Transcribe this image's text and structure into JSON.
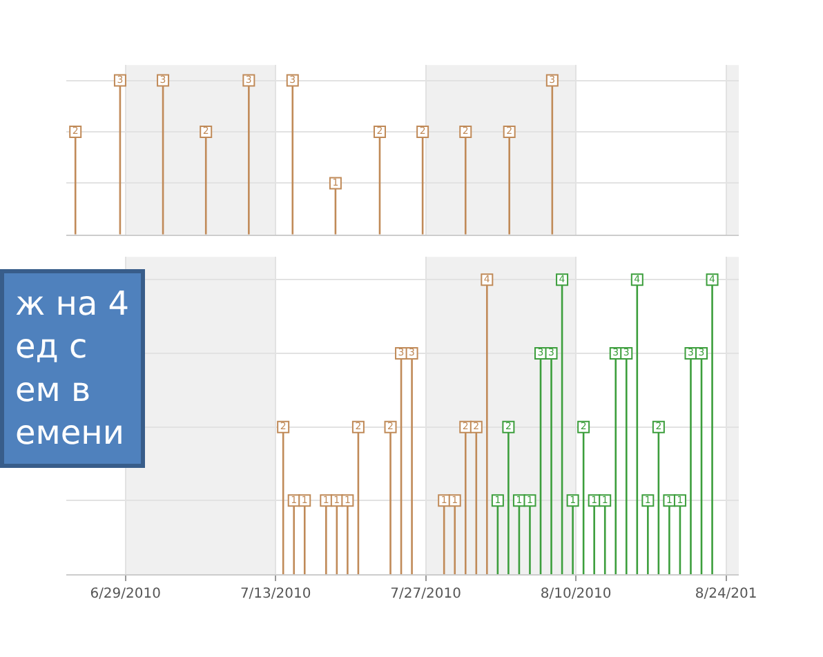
{
  "chart_data": [
    {
      "type": "lollipop",
      "data_labels": true,
      "tick_labels": false,
      "grid": true,
      "marker": "square",
      "xlim": [
        "2010-06-23T11:00",
        "2010-08-25T05:00"
      ],
      "xticks": [
        {
          "value": "2010-06-29",
          "label": null
        },
        {
          "value": "2010-07-13",
          "label": null
        },
        {
          "value": "2010-07-27",
          "label": null
        },
        {
          "value": "2010-08-10",
          "label": null
        },
        {
          "value": "2010-08-24",
          "label": null
        }
      ],
      "bands": [
        {
          "axis": "x",
          "from": "2010-06-29",
          "to": "2010-07-13",
          "color": "#f0f0f0"
        },
        {
          "axis": "x",
          "from": "2010-07-27",
          "to": "2010-08-10",
          "color": "#f0f0f0"
        },
        {
          "axis": "x",
          "from": "2010-08-24",
          "to": "2010-08-25T05:00",
          "color": "#f0f0f0"
        }
      ],
      "series": [
        {
          "color": "#c08a58",
          "x": [
            "2010-06-24T08:00",
            "2010-06-28T12:00",
            "2010-07-02T12:00",
            "2010-07-06T12:00",
            "2010-07-10T12:00",
            "2010-07-14T14:00",
            "2010-07-18T14:00",
            "2010-07-22T17:00",
            "2010-07-26T17:00",
            "2010-07-30T17:00",
            "2010-08-03T19:00",
            "2010-08-07T19:00"
          ],
          "values": [
            2,
            3,
            3,
            2,
            3,
            3,
            1,
            2,
            2,
            2,
            2,
            3
          ]
        }
      ]
    },
    {
      "type": "lollipop",
      "data_labels": true,
      "tick_labels": "x",
      "grid": true,
      "marker": "square",
      "xlim": [
        "2010-06-23T11:00",
        "2010-08-25T05:00"
      ],
      "xticks": [
        {
          "value": "2010-06-29",
          "label": "6/29/2010"
        },
        {
          "value": "2010-07-13",
          "label": "7/13/2010"
        },
        {
          "value": "2010-07-27",
          "label": "7/27/2010"
        },
        {
          "value": "2010-08-10",
          "label": "8/10/2010"
        },
        {
          "value": "2010-08-24",
          "label": "8/24/201"
        }
      ],
      "bands": [
        {
          "axis": "x",
          "from": "2010-06-29",
          "to": "2010-07-13",
          "color": "#f0f0f0"
        },
        {
          "axis": "x",
          "from": "2010-07-27",
          "to": "2010-08-10",
          "color": "#f0f0f0"
        },
        {
          "axis": "x",
          "from": "2010-08-24",
          "to": "2010-08-25T05:00",
          "color": "#f0f0f0"
        }
      ],
      "annotations": [
        "ж на 4\nед с\nем в\nемени"
      ],
      "series": [
        {
          "color": "#c08a58",
          "x": [
            "2010-07-13T17:00",
            "2010-07-14T17:00",
            "2010-07-15T17:00",
            "2010-07-17T17:00",
            "2010-07-18T17:00",
            "2010-07-19T17:00",
            "2010-07-20T17:00",
            "2010-07-23T17:00",
            "2010-07-24T17:00",
            "2010-07-25T17:00",
            "2010-07-28T17:00",
            "2010-07-29T17:00",
            "2010-07-30T17:00",
            "2010-07-31T17:00",
            "2010-08-01T17:00"
          ],
          "values": [
            2,
            1,
            1,
            1,
            1,
            1,
            2,
            2,
            3,
            3,
            1,
            1,
            2,
            2,
            4
          ]
        },
        {
          "color": "#3c9e3c",
          "x": [
            "2010-08-02T17:00",
            "2010-08-03T17:00",
            "2010-08-04T17:00",
            "2010-08-05T17:00",
            "2010-08-06T17:00",
            "2010-08-07T17:00",
            "2010-08-08T17:00",
            "2010-08-09T17:00",
            "2010-08-10T17:00",
            "2010-08-11T17:00",
            "2010-08-12T17:00",
            "2010-08-13T17:00",
            "2010-08-14T17:00",
            "2010-08-15T17:00",
            "2010-08-16T17:00",
            "2010-08-17T17:00",
            "2010-08-18T17:00",
            "2010-08-19T17:00",
            "2010-08-20T17:00",
            "2010-08-21T17:00",
            "2010-08-22T17:00"
          ],
          "values": [
            1,
            2,
            1,
            1,
            3,
            3,
            4,
            1,
            2,
            1,
            1,
            3,
            3,
            4,
            1,
            2,
            1,
            1,
            3,
            3,
            4
          ]
        }
      ]
    }
  ]
}
